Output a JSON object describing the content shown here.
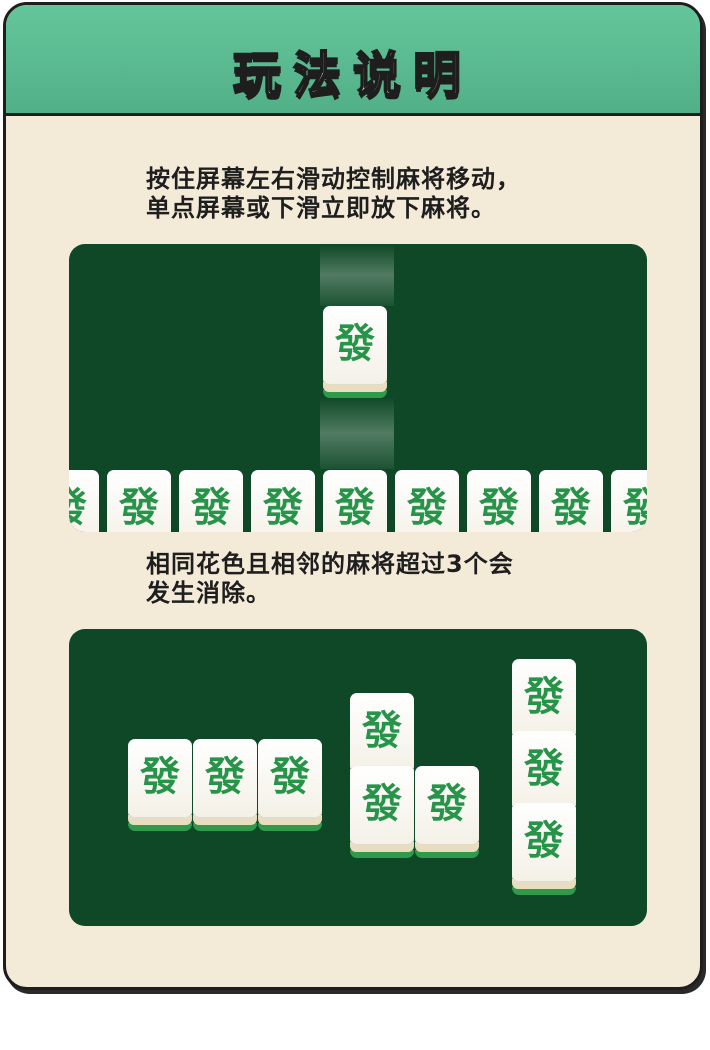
{
  "title": "玩法说明",
  "instruction1": {
    "line1": "按住屏幕左右滑动控制麻将移动，",
    "line2": "单点屏幕或下滑立即放下麻将。"
  },
  "instruction2": {
    "line1": "相同花色且相邻的麻将超过3个会",
    "line2": "发生消除。"
  },
  "tile_glyph": "發",
  "colors": {
    "header": "#5cbb92",
    "background": "#f4ead8",
    "board": "#0e4826",
    "tile_glyph": "#27944a"
  }
}
